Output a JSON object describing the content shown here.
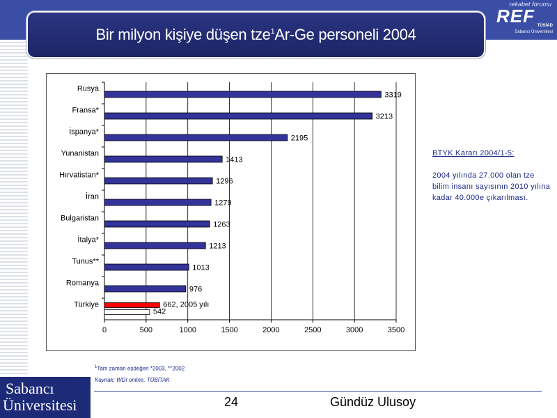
{
  "slide": {
    "title_main": "Bir milyon kişiye düşen tze",
    "title_sup": "1",
    "title_rest": "Ar-Ge personeli 2004",
    "page_number": "24",
    "author": "Gündüz Ulusoy"
  },
  "logos": {
    "ref_top": "rekabet forumu",
    "ref_main": "REF",
    "ref_sub1": "TÜSİAD",
    "ref_sub2": "Sabancı Üniversitesi",
    "su_line1": "Sabancı",
    "su_line2": "Üniversitesi"
  },
  "side_note": {
    "heading": "BTYK Kararı 2004/1-5:",
    "body": "2004 yılında 27.000 olan tze bilim insanı sayısının 2010 yılına kadar 40.000e çıkarılması."
  },
  "footnotes": {
    "sup": "1",
    "line1": "Tam zaman eşdeğeri *2003, **2002",
    "line2": "Kaynak: WDI online, TÜBİTAK"
  },
  "colors": {
    "bar_default": "#333399",
    "bar_highlight": "#ff0000",
    "bar_outline": "#000000",
    "bar_white": "#ffffff",
    "grid": "#000000",
    "title_bg": "#25307a"
  },
  "chart_data": {
    "type": "bar",
    "orientation": "horizontal",
    "categories": [
      "Rusya",
      "Fransa*",
      "İspanya*",
      "Yunanistan",
      "Hırvatistan*",
      "İran",
      "Bulgaristan",
      "İtalya*",
      "Tunus**",
      "Romanya",
      "Türkiye"
    ],
    "values": [
      3319,
      3213,
      2195,
      1413,
      1296,
      1279,
      1263,
      1213,
      1013,
      976,
      null
    ],
    "value_labels": [
      "3319",
      "3213",
      "2195",
      "1413",
      "1296",
      "1279",
      "1263",
      "1213",
      "1013",
      "976",
      ""
    ],
    "turkey_series": [
      {
        "value": 662,
        "label": "662, 2005 yılı",
        "color": "red"
      },
      {
        "value": 542,
        "label": "542",
        "color": "white"
      }
    ],
    "x_ticks": [
      0,
      500,
      1000,
      1500,
      2000,
      2500,
      3000,
      3500
    ],
    "xlim": [
      0,
      3500
    ],
    "grid": "vertical",
    "legend": "none"
  }
}
